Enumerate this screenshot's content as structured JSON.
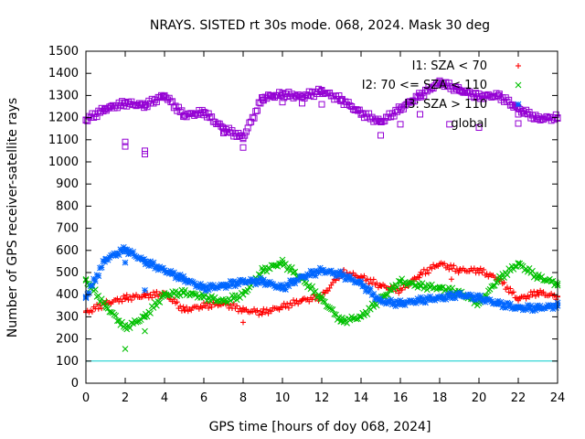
{
  "chart_data": {
    "type": "scatter",
    "title": "NRAYS. SISTED rt 30s mode. 068, 2024. Mask 30 deg",
    "xlabel": "GPS time [hours of doy 068, 2024]",
    "ylabel": "Number of GPS receiver-satellite rays",
    "xlim": [
      0,
      24
    ],
    "ylim": [
      0,
      1500
    ],
    "x_ticks": [
      0,
      2,
      4,
      6,
      8,
      10,
      12,
      14,
      16,
      18,
      20,
      22,
      24
    ],
    "x_tick_labels": [
      "0",
      "2",
      "4",
      "6",
      "8",
      "10",
      "12",
      "14",
      "16",
      "18",
      "20",
      "22",
      "24"
    ],
    "y_ticks": [
      0,
      100,
      200,
      300,
      400,
      500,
      600,
      700,
      800,
      900,
      1000,
      1100,
      1200,
      1300,
      1400,
      1500
    ],
    "y_tick_labels": [
      "0",
      "100",
      "200",
      "300",
      "400",
      "500",
      "600",
      "700",
      "800",
      "900",
      "1000",
      "1100",
      "1200",
      "1300",
      "1400",
      "1500"
    ],
    "reference_line": {
      "y": 100,
      "color": "#00cccc"
    },
    "legend_position": "top-right",
    "series": [
      {
        "name": "I1: SZA < 70",
        "marker": "+",
        "color": "#ff0000",
        "x": [
          0,
          1,
          2,
          3,
          4,
          5,
          6,
          7,
          8,
          9,
          10,
          11,
          12,
          13,
          14,
          15,
          16,
          17,
          18,
          19,
          20,
          21,
          22,
          23,
          24
        ],
        "y": [
          320,
          360,
          385,
          395,
          405,
          330,
          350,
          360,
          330,
          320,
          345,
          375,
          390,
          500,
          480,
          440,
          420,
          490,
          540,
          510,
          510,
          470,
          380,
          410,
          390
        ],
        "outliers": {
          "x": [
            8,
            18.6,
            2
          ],
          "y": [
            275,
            470,
            380
          ]
        }
      },
      {
        "name": "I2: 70 <= SZA < 110",
        "marker": "x",
        "color": "#00c000",
        "x": [
          0,
          1,
          2,
          3,
          4,
          5,
          6,
          7,
          8,
          9,
          10,
          11,
          12,
          13,
          14,
          15,
          16,
          17,
          18,
          19,
          20,
          21,
          22,
          23,
          24
        ],
        "y": [
          465,
          350,
          250,
          300,
          400,
          410,
          390,
          370,
          400,
          510,
          545,
          470,
          380,
          280,
          300,
          380,
          460,
          440,
          430,
          410,
          360,
          470,
          540,
          480,
          450
        ],
        "outliers": {
          "x": [
            2,
            3
          ],
          "y": [
            155,
            235
          ]
        }
      },
      {
        "name": "I3: SZA > 110",
        "marker": "*",
        "color": "#0066ff",
        "x": [
          0,
          1,
          2,
          3,
          4,
          5,
          6,
          7,
          8,
          9,
          10,
          11,
          12,
          13,
          14,
          15,
          16,
          17,
          18,
          19,
          20,
          21,
          22,
          23,
          24
        ],
        "y": [
          390,
          560,
          605,
          550,
          510,
          470,
          430,
          440,
          460,
          460,
          430,
          480,
          510,
          490,
          450,
          370,
          360,
          375,
          385,
          400,
          385,
          360,
          340,
          340,
          350
        ],
        "outliers": {
          "x": [
            2,
            3
          ],
          "y": [
            545,
            420
          ]
        }
      },
      {
        "name": "global",
        "marker": "square",
        "color": "#9400d3",
        "x": [
          0,
          1,
          2,
          3,
          4,
          5,
          6,
          7,
          8,
          9,
          10,
          11,
          12,
          13,
          14,
          15,
          16,
          17,
          18,
          19,
          20,
          21,
          22,
          23,
          24
        ],
        "y": [
          1190,
          1240,
          1265,
          1255,
          1300,
          1210,
          1225,
          1150,
          1110,
          1290,
          1305,
          1295,
          1320,
          1280,
          1220,
          1180,
          1240,
          1300,
          1360,
          1325,
          1295,
          1300,
          1240,
          1195,
          1200
        ],
        "outliers": {
          "x": [
            2,
            2,
            3,
            3,
            7,
            8,
            9,
            10,
            11,
            12,
            15,
            16,
            17,
            18.5,
            20,
            22
          ],
          "y": [
            1070,
            1090,
            1035,
            1050,
            1130,
            1065,
            1280,
            1270,
            1265,
            1260,
            1120,
            1170,
            1215,
            1170,
            1155,
            1215
          ]
        }
      }
    ]
  }
}
